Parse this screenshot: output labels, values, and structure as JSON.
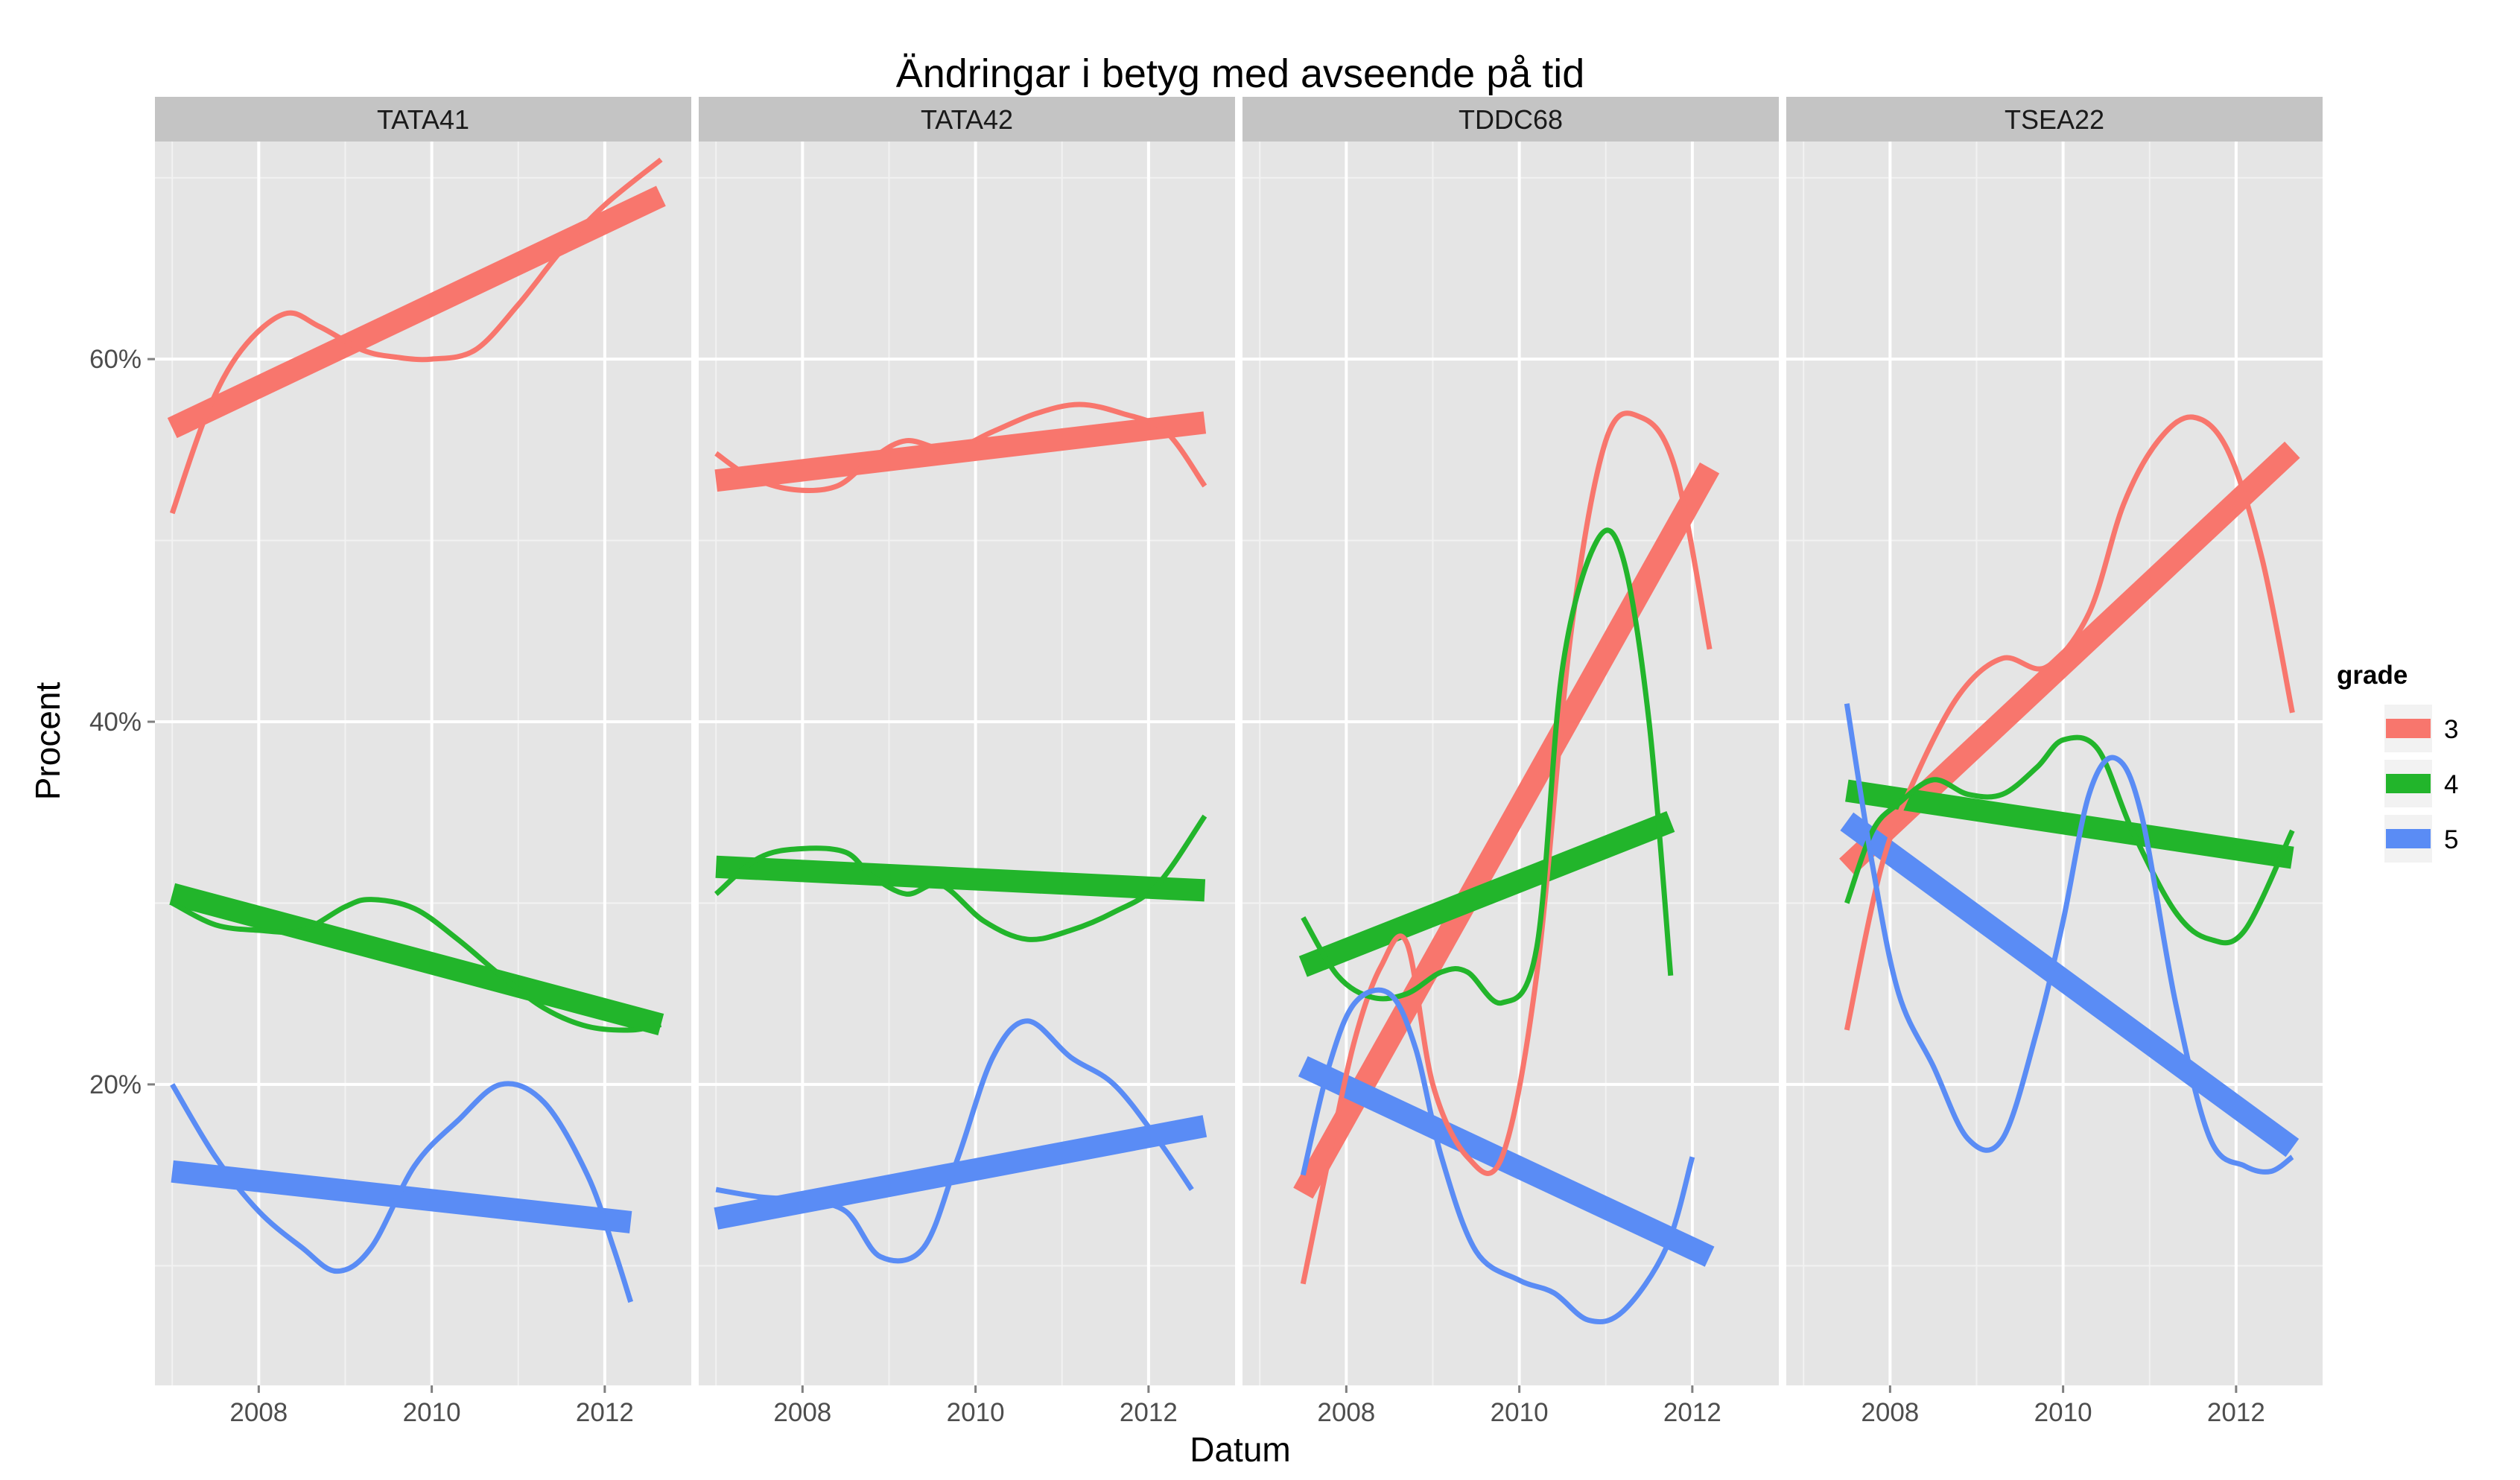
{
  "chart_data": {
    "type": "line",
    "title": "Ändringar i betyg med avseende på tid",
    "xlabel": "Datum",
    "ylabel": "Procent",
    "xlim": [
      2006.8,
      2013.0
    ],
    "ylim": [
      0.034,
      0.72
    ],
    "x_ticks": [
      2008,
      2010,
      2012
    ],
    "x_tick_labels": [
      "2008",
      "2010",
      "2012"
    ],
    "y_ticks": [
      0.2,
      0.4,
      0.6
    ],
    "y_tick_labels": [
      "20%",
      "40%",
      "60%"
    ],
    "grid": true,
    "legend": {
      "title": "grade",
      "position": "right",
      "entries": [
        {
          "label": "3",
          "color": "#F8766D"
        },
        {
          "label": "4",
          "color": "#22B52B"
        },
        {
          "label": "5",
          "color": "#5A8CF5"
        }
      ]
    },
    "panels": [
      {
        "name": "TATA41",
        "series": [
          {
            "grade": "3",
            "smooth": [
              [
                2007.0,
                0.515
              ],
              [
                2007.4,
                0.57
              ],
              [
                2007.8,
                0.605
              ],
              [
                2008.3,
                0.625
              ],
              [
                2008.7,
                0.618
              ],
              [
                2009.2,
                0.605
              ],
              [
                2009.6,
                0.601
              ],
              [
                2010.0,
                0.6
              ],
              [
                2010.5,
                0.605
              ],
              [
                2011.0,
                0.63
              ],
              [
                2011.5,
                0.66
              ],
              [
                2012.0,
                0.685
              ],
              [
                2012.65,
                0.71
              ]
            ],
            "trend": [
              [
                2007.0,
                0.562
              ],
              [
                2012.65,
                0.69
              ]
            ]
          },
          {
            "grade": "4",
            "smooth": [
              [
                2007.0,
                0.3
              ],
              [
                2007.5,
                0.288
              ],
              [
                2008.0,
                0.285
              ],
              [
                2008.5,
                0.285
              ],
              [
                2009.0,
                0.298
              ],
              [
                2009.3,
                0.302
              ],
              [
                2009.8,
                0.297
              ],
              [
                2010.3,
                0.28
              ],
              [
                2010.8,
                0.26
              ],
              [
                2011.3,
                0.242
              ],
              [
                2011.8,
                0.232
              ],
              [
                2012.3,
                0.23
              ],
              [
                2012.65,
                0.233
              ]
            ],
            "trend": [
              [
                2007.0,
                0.305
              ],
              [
                2012.65,
                0.233
              ]
            ]
          },
          {
            "grade": "5",
            "smooth": [
              [
                2007.0,
                0.2
              ],
              [
                2007.5,
                0.16
              ],
              [
                2008.0,
                0.13
              ],
              [
                2008.5,
                0.11
              ],
              [
                2008.9,
                0.097
              ],
              [
                2009.3,
                0.11
              ],
              [
                2009.8,
                0.155
              ],
              [
                2010.3,
                0.18
              ],
              [
                2010.8,
                0.2
              ],
              [
                2011.3,
                0.19
              ],
              [
                2011.8,
                0.15
              ],
              [
                2012.1,
                0.11
              ],
              [
                2012.3,
                0.08
              ]
            ],
            "trend": [
              [
                2007.0,
                0.152
              ],
              [
                2012.3,
                0.124
              ]
            ]
          }
        ]
      },
      {
        "name": "TATA42",
        "series": [
          {
            "grade": "3",
            "smooth": [
              [
                2007.0,
                0.548
              ],
              [
                2007.4,
                0.535
              ],
              [
                2007.9,
                0.528
              ],
              [
                2008.4,
                0.53
              ],
              [
                2008.8,
                0.545
              ],
              [
                2009.2,
                0.555
              ],
              [
                2009.7,
                0.55
              ],
              [
                2010.2,
                0.56
              ],
              [
                2010.7,
                0.57
              ],
              [
                2011.2,
                0.575
              ],
              [
                2011.7,
                0.57
              ],
              [
                2012.2,
                0.56
              ],
              [
                2012.65,
                0.53
              ]
            ],
            "trend": [
              [
                2007.0,
                0.533
              ],
              [
                2012.65,
                0.565
              ]
            ]
          },
          {
            "grade": "4",
            "smooth": [
              [
                2007.0,
                0.305
              ],
              [
                2007.5,
                0.325
              ],
              [
                2008.0,
                0.33
              ],
              [
                2008.5,
                0.328
              ],
              [
                2008.8,
                0.315
              ],
              [
                2009.2,
                0.305
              ],
              [
                2009.6,
                0.31
              ],
              [
                2010.1,
                0.29
              ],
              [
                2010.6,
                0.28
              ],
              [
                2011.1,
                0.285
              ],
              [
                2011.6,
                0.295
              ],
              [
                2012.1,
                0.31
              ],
              [
                2012.65,
                0.348
              ]
            ],
            "trend": [
              [
                2007.0,
                0.32
              ],
              [
                2012.65,
                0.307
              ]
            ]
          },
          {
            "grade": "5",
            "smooth": [
              [
                2007.0,
                0.142
              ],
              [
                2007.5,
                0.138
              ],
              [
                2008.0,
                0.136
              ],
              [
                2008.5,
                0.13
              ],
              [
                2008.9,
                0.105
              ],
              [
                2009.4,
                0.11
              ],
              [
                2009.8,
                0.16
              ],
              [
                2010.2,
                0.215
              ],
              [
                2010.6,
                0.235
              ],
              [
                2011.1,
                0.215
              ],
              [
                2011.6,
                0.2
              ],
              [
                2012.1,
                0.17
              ],
              [
                2012.5,
                0.142
              ]
            ],
            "trend": [
              [
                2007.0,
                0.126
              ],
              [
                2012.65,
                0.177
              ]
            ]
          }
        ]
      },
      {
        "name": "TDDC68",
        "series": [
          {
            "grade": "3",
            "smooth": [
              [
                2007.5,
                0.09
              ],
              [
                2007.8,
                0.16
              ],
              [
                2008.1,
                0.225
              ],
              [
                2008.4,
                0.265
              ],
              [
                2008.7,
                0.278
              ],
              [
                2009.0,
                0.2
              ],
              [
                2009.4,
                0.16
              ],
              [
                2009.8,
                0.16
              ],
              [
                2010.2,
                0.26
              ],
              [
                2010.6,
                0.45
              ],
              [
                2011.0,
                0.555
              ],
              [
                2011.4,
                0.568
              ],
              [
                2011.8,
                0.54
              ],
              [
                2012.2,
                0.44
              ]
            ],
            "trend": [
              [
                2007.5,
                0.14
              ],
              [
                2012.2,
                0.54
              ]
            ]
          },
          {
            "grade": "4",
            "smooth": [
              [
                2007.5,
                0.292
              ],
              [
                2007.9,
                0.26
              ],
              [
                2008.3,
                0.248
              ],
              [
                2008.7,
                0.25
              ],
              [
                2009.1,
                0.262
              ],
              [
                2009.4,
                0.262
              ],
              [
                2009.8,
                0.245
              ],
              [
                2010.2,
                0.275
              ],
              [
                2010.5,
                0.43
              ],
              [
                2010.9,
                0.5
              ],
              [
                2011.2,
                0.49
              ],
              [
                2011.5,
                0.4
              ],
              [
                2011.75,
                0.26
              ]
            ],
            "trend": [
              [
                2007.5,
                0.265
              ],
              [
                2011.75,
                0.345
              ]
            ]
          },
          {
            "grade": "5",
            "smooth": [
              [
                2007.5,
                0.15
              ],
              [
                2007.8,
                0.21
              ],
              [
                2008.1,
                0.245
              ],
              [
                2008.5,
                0.25
              ],
              [
                2008.8,
                0.22
              ],
              [
                2009.1,
                0.16
              ],
              [
                2009.5,
                0.108
              ],
              [
                2010.0,
                0.092
              ],
              [
                2010.4,
                0.085
              ],
              [
                2010.8,
                0.07
              ],
              [
                2011.2,
                0.075
              ],
              [
                2011.7,
                0.11
              ],
              [
                2012.0,
                0.16
              ]
            ],
            "trend": [
              [
                2007.5,
                0.21
              ],
              [
                2012.2,
                0.105
              ]
            ]
          }
        ]
      },
      {
        "name": "TSEA22",
        "series": [
          {
            "grade": "3",
            "smooth": [
              [
                2007.5,
                0.23
              ],
              [
                2007.9,
                0.32
              ],
              [
                2008.3,
                0.37
              ],
              [
                2008.8,
                0.415
              ],
              [
                2009.3,
                0.435
              ],
              [
                2009.8,
                0.43
              ],
              [
                2010.3,
                0.46
              ],
              [
                2010.7,
                0.52
              ],
              [
                2011.1,
                0.555
              ],
              [
                2011.5,
                0.568
              ],
              [
                2011.9,
                0.55
              ],
              [
                2012.3,
                0.49
              ],
              [
                2012.65,
                0.405
              ]
            ],
            "trend": [
              [
                2007.5,
                0.32
              ],
              [
                2012.65,
                0.55
              ]
            ]
          },
          {
            "grade": "4",
            "smooth": [
              [
                2007.5,
                0.3
              ],
              [
                2007.8,
                0.34
              ],
              [
                2008.1,
                0.355
              ],
              [
                2008.5,
                0.368
              ],
              [
                2008.9,
                0.36
              ],
              [
                2009.3,
                0.36
              ],
              [
                2009.7,
                0.375
              ],
              [
                2010.0,
                0.39
              ],
              [
                2010.4,
                0.385
              ],
              [
                2010.8,
                0.34
              ],
              [
                2011.3,
                0.295
              ],
              [
                2011.7,
                0.28
              ],
              [
                2012.1,
                0.285
              ],
              [
                2012.65,
                0.34
              ]
            ],
            "trend": [
              [
                2007.5,
                0.362
              ],
              [
                2012.65,
                0.325
              ]
            ]
          },
          {
            "grade": "5",
            "smooth": [
              [
                2007.5,
                0.41
              ],
              [
                2007.8,
                0.32
              ],
              [
                2008.1,
                0.25
              ],
              [
                2008.5,
                0.21
              ],
              [
                2008.9,
                0.17
              ],
              [
                2009.3,
                0.17
              ],
              [
                2009.7,
                0.23
              ],
              [
                2010.0,
                0.29
              ],
              [
                2010.3,
                0.36
              ],
              [
                2010.6,
                0.38
              ],
              [
                2010.9,
                0.35
              ],
              [
                2011.3,
                0.245
              ],
              [
                2011.7,
                0.17
              ],
              [
                2012.1,
                0.155
              ],
              [
                2012.4,
                0.152
              ],
              [
                2012.65,
                0.16
              ]
            ],
            "trend": [
              [
                2007.5,
                0.345
              ],
              [
                2012.65,
                0.165
              ]
            ]
          }
        ]
      }
    ]
  }
}
